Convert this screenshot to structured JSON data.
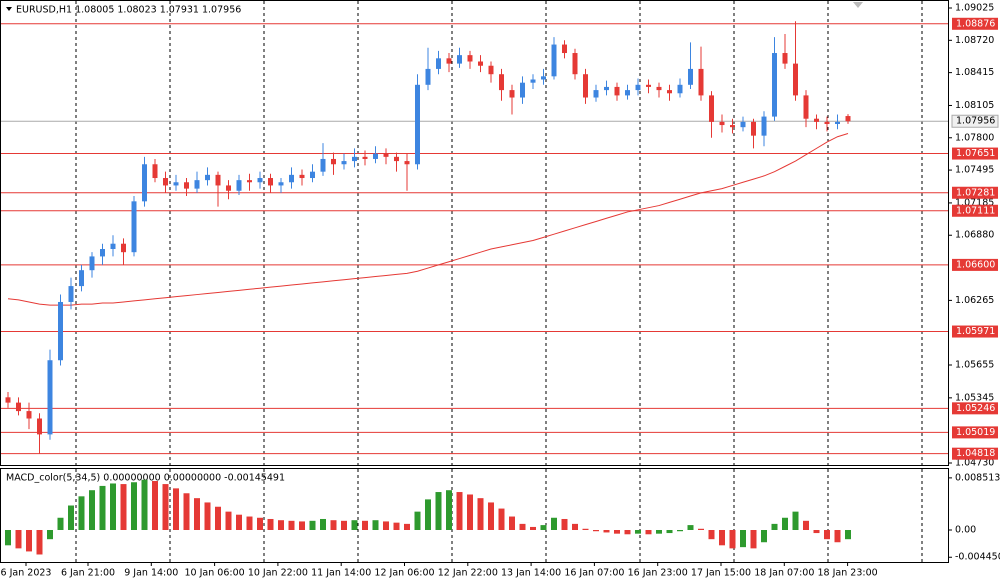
{
  "chart_data": [
    {
      "type": "candlestick",
      "title": "EURUSD,H1  1.08005 1.08023 1.07931 1.07956",
      "up_color": "#3d85e0",
      "down_color": "#e53935",
      "ma_color": "#e53935",
      "level_color": "#e53935",
      "ylim": [
        1.0473,
        1.09025
      ],
      "yticks": [
        1.09025,
        {
          "value": 1.0872,
          "label": "1.08720"
        },
        1.08415,
        1.08105,
        {
          "value": 1.078,
          "label": "1.07800"
        },
        1.07495,
        1.07185,
        {
          "value": 1.0688,
          "label": "1.06880"
        },
        1.06265,
        1.05655,
        1.05345,
        {
          "value": 1.0473,
          "label": "1.04730"
        }
      ],
      "levels": [
        1.08876,
        1.07651,
        1.07281,
        1.07111,
        {
          "value": 1.066,
          "label": "1.06600"
        },
        1.05971,
        1.05246,
        1.05019,
        1.04818
      ],
      "last_price": 1.07956,
      "x_labels": [
        "6 Jan 2023",
        "6 Jan 21:00",
        "9 Jan 14:00",
        "10 Jan 06:00",
        "10 Jan 22:00",
        "11 Jan 14:00",
        "12 Jan 06:00",
        "12 Jan 22:00",
        "13 Jan 14:00",
        "16 Jan 07:00",
        "16 Jan 23:00",
        "17 Jan 15:00",
        "18 Jan 07:00",
        "18 Jan 23:00"
      ],
      "ohlc": [
        [
          1.0535,
          1.054,
          1.0525,
          1.053
        ],
        [
          1.053,
          1.0535,
          1.0518,
          1.0522
        ],
        [
          1.0522,
          1.053,
          1.0505,
          1.0515
        ],
        [
          1.0515,
          1.052,
          1.0482,
          1.05
        ],
        [
          1.05,
          1.058,
          1.0495,
          1.057
        ],
        [
          1.057,
          1.0632,
          1.0565,
          1.0625
        ],
        [
          1.0625,
          1.0648,
          1.0618,
          1.064
        ],
        [
          1.064,
          1.066,
          1.0635,
          1.0655
        ],
        [
          1.0655,
          1.0672,
          1.0648,
          1.0668
        ],
        [
          1.0668,
          1.068,
          1.066,
          1.0675
        ],
        [
          1.0675,
          1.0688,
          1.0668,
          1.068
        ],
        [
          1.068,
          1.0685,
          1.066,
          1.0672
        ],
        [
          1.0672,
          1.0725,
          1.0668,
          1.072
        ],
        [
          1.072,
          1.0762,
          1.0715,
          1.0755
        ],
        [
          1.0755,
          1.076,
          1.0738,
          1.0742
        ],
        [
          1.0742,
          1.0748,
          1.0728,
          1.0735
        ],
        [
          1.0735,
          1.0745,
          1.073,
          1.0738
        ],
        [
          1.0738,
          1.0742,
          1.0725,
          1.0732
        ],
        [
          1.0732,
          1.0748,
          1.0728,
          1.074
        ],
        [
          1.074,
          1.0752,
          1.0735,
          1.0745
        ],
        [
          1.0745,
          1.0748,
          1.0715,
          1.0735
        ],
        [
          1.0735,
          1.074,
          1.0722,
          1.073
        ],
        [
          1.073,
          1.0745,
          1.0726,
          1.074
        ],
        [
          1.074,
          1.0746,
          1.073,
          1.0738
        ],
        [
          1.0738,
          1.0748,
          1.0732,
          1.0742
        ],
        [
          1.0742,
          1.0746,
          1.0728,
          1.0735
        ],
        [
          1.0735,
          1.0742,
          1.0728,
          1.0738
        ],
        [
          1.0738,
          1.0752,
          1.0732,
          1.0745
        ],
        [
          1.0745,
          1.075,
          1.0735,
          1.0742
        ],
        [
          1.0742,
          1.0755,
          1.0738,
          1.0748
        ],
        [
          1.0748,
          1.0775,
          1.0744,
          1.076
        ],
        [
          1.076,
          1.0766,
          1.0745,
          1.0755
        ],
        [
          1.0755,
          1.0765,
          1.075,
          1.0758
        ],
        [
          1.0758,
          1.077,
          1.0752,
          1.0762
        ],
        [
          1.0762,
          1.0768,
          1.0754,
          1.076
        ],
        [
          1.076,
          1.0772,
          1.0756,
          1.0765
        ],
        [
          1.0765,
          1.077,
          1.0755,
          1.0762
        ],
        [
          1.0762,
          1.0766,
          1.0748,
          1.0758
        ],
        [
          1.0758,
          1.0765,
          1.073,
          1.0755
        ],
        [
          1.0755,
          1.084,
          1.075,
          1.083
        ],
        [
          1.083,
          1.0865,
          1.0825,
          1.0845
        ],
        [
          1.0845,
          1.0862,
          1.084,
          1.0855
        ],
        [
          1.0855,
          1.086,
          1.0842,
          1.085
        ],
        [
          1.085,
          1.0865,
          1.0846,
          1.0858
        ],
        [
          1.0858,
          1.0862,
          1.0845,
          1.0852
        ],
        [
          1.0852,
          1.0858,
          1.0842,
          1.0848
        ],
        [
          1.0848,
          1.0852,
          1.0832,
          1.084
        ],
        [
          1.084,
          1.0845,
          1.0815,
          1.0825
        ],
        [
          1.0825,
          1.083,
          1.0802,
          1.0818
        ],
        [
          1.0818,
          1.0838,
          1.0812,
          1.0832
        ],
        [
          1.0832,
          1.084,
          1.0826,
          1.0835
        ],
        [
          1.0835,
          1.0845,
          1.083,
          1.0838
        ],
        [
          1.0838,
          1.0875,
          1.0835,
          1.0868
        ],
        [
          1.0868,
          1.0872,
          1.0855,
          1.086
        ],
        [
          1.086,
          1.0864,
          1.0835,
          1.084
        ],
        [
          1.084,
          1.0845,
          1.0812,
          1.0818
        ],
        [
          1.0818,
          1.083,
          1.0814,
          1.0825
        ],
        [
          1.0825,
          1.0834,
          1.082,
          1.0828
        ],
        [
          1.0828,
          1.0832,
          1.0815,
          1.082
        ],
        [
          1.082,
          1.083,
          1.0816,
          1.0825
        ],
        [
          1.0825,
          1.0836,
          1.082,
          1.083
        ],
        [
          1.083,
          1.0835,
          1.0822,
          1.0828
        ],
        [
          1.0828,
          1.0832,
          1.0818,
          1.0825
        ],
        [
          1.0825,
          1.083,
          1.0815,
          1.0822
        ],
        [
          1.0822,
          1.0836,
          1.0818,
          1.083
        ],
        [
          1.083,
          1.087,
          1.0826,
          1.0845
        ],
        [
          1.0845,
          1.0866,
          1.0815,
          1.082
        ],
        [
          1.082,
          1.0824,
          1.078,
          1.0795
        ],
        [
          1.0795,
          1.0802,
          1.0785,
          1.0792
        ],
        [
          1.0792,
          1.0798,
          1.0784,
          1.079
        ],
        [
          1.079,
          1.08,
          1.0786,
          1.0795
        ],
        [
          1.0795,
          1.0798,
          1.077,
          1.0782
        ],
        [
          1.0782,
          1.0805,
          1.0772,
          1.08
        ],
        [
          1.08,
          1.0875,
          1.0796,
          1.086
        ],
        [
          1.086,
          1.0878,
          1.0845,
          1.085
        ],
        [
          1.085,
          1.089,
          1.0815,
          1.082
        ],
        [
          1.082,
          1.0825,
          1.079,
          1.0798
        ],
        [
          1.0798,
          1.0802,
          1.0788,
          1.0795
        ],
        [
          1.0795,
          1.08,
          1.0786,
          1.0793
        ],
        [
          1.0793,
          1.0802,
          1.0788,
          1.0795
        ],
        [
          1.08005,
          1.08023,
          1.07931,
          1.07956
        ]
      ],
      "ma": [
        1.0628,
        1.0627,
        1.0625,
        1.0623,
        1.0622,
        1.0622,
        1.0622,
        1.0623,
        1.0623,
        1.0624,
        1.0624,
        1.0625,
        1.0626,
        1.0627,
        1.0628,
        1.0629,
        1.063,
        1.0631,
        1.0632,
        1.0633,
        1.0634,
        1.0635,
        1.0636,
        1.0637,
        1.0638,
        1.0639,
        1.064,
        1.0641,
        1.0642,
        1.0643,
        1.0644,
        1.0645,
        1.0646,
        1.0647,
        1.0648,
        1.0649,
        1.065,
        1.0651,
        1.0652,
        1.0654,
        1.0657,
        1.066,
        1.0663,
        1.0666,
        1.0669,
        1.0672,
        1.0675,
        1.0677,
        1.0679,
        1.0681,
        1.0683,
        1.0686,
        1.0689,
        1.0692,
        1.0695,
        1.0698,
        1.0701,
        1.0704,
        1.0707,
        1.071,
        1.0712,
        1.0714,
        1.0716,
        1.0719,
        1.0722,
        1.0725,
        1.0728,
        1.073,
        1.0732,
        1.0735,
        1.0738,
        1.0741,
        1.0744,
        1.0748,
        1.0753,
        1.0758,
        1.0764,
        1.077,
        1.0776,
        1.0781,
        1.0784
      ]
    },
    {
      "type": "histogram",
      "title": "MACD_color(5,34,5) 0.00000000 0.00000000 -0.00145491",
      "up_color": "#2e9a2e",
      "down_color": "#e53935",
      "ylim": [
        -0.0049,
        0.0098
      ],
      "yticks": [
        0.0085131,
        {
          "value": 0,
          "label": "0.00"
        },
        -0.0044507
      ],
      "values": [
        -0.0025,
        -0.003,
        -0.0035,
        -0.004,
        -0.0015,
        0.002,
        0.004,
        0.0055,
        0.0065,
        0.0072,
        0.0076,
        0.0075,
        0.0078,
        0.0082,
        0.008,
        0.0075,
        0.0068,
        0.006,
        0.0052,
        0.0045,
        0.0038,
        0.003,
        0.0025,
        0.0022,
        0.002,
        0.0018,
        0.0016,
        0.0015,
        0.0014,
        0.0015,
        0.0018,
        0.0016,
        0.0015,
        0.0016,
        0.0015,
        0.0016,
        0.0014,
        0.0012,
        0.001,
        0.003,
        0.005,
        0.0062,
        0.0065,
        0.0062,
        0.0058,
        0.0052,
        0.0045,
        0.0035,
        0.0022,
        0.001,
        0.0005,
        0.0008,
        0.002,
        0.0018,
        0.001,
        0.0002,
        -0.0002,
        -0.0004,
        -0.0006,
        -0.0007,
        -0.0006,
        -0.0007,
        -0.0006,
        -0.0005,
        -0.0002,
        0.0008,
        0.0002,
        -0.0015,
        -0.0025,
        -0.003,
        -0.0028,
        -0.003,
        -0.002,
        0.001,
        0.002,
        0.003,
        0.0015,
        -0.0005,
        -0.0015,
        -0.002,
        -0.0015
      ]
    }
  ]
}
